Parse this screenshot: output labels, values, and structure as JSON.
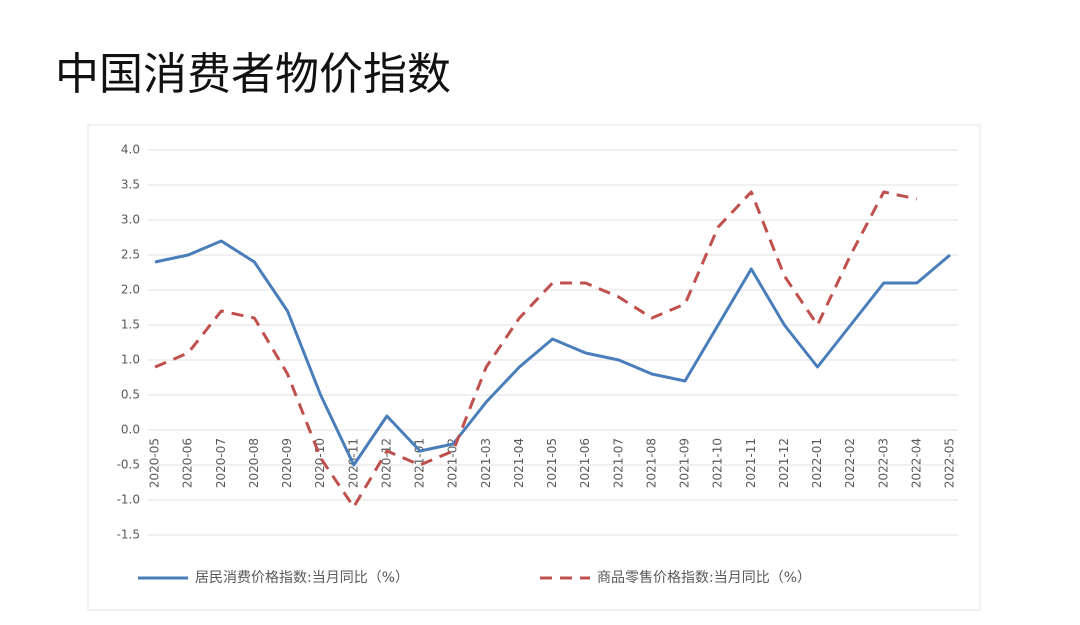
{
  "title": "中国消费者物价指数",
  "chart_data": {
    "type": "line",
    "categories": [
      "2020-05",
      "2020-06",
      "2020-07",
      "2020-08",
      "2020-09",
      "2020-10",
      "2020-11",
      "2020-12",
      "2021-01",
      "2021-02",
      "2021-03",
      "2021-04",
      "2021-05",
      "2021-06",
      "2021-07",
      "2021-08",
      "2021-09",
      "2021-10",
      "2021-11",
      "2021-12",
      "2022-01",
      "2022-02",
      "2022-03",
      "2022-04",
      "2022-05"
    ],
    "series": [
      {
        "name": "居民消费价格指数:当月同比（%）",
        "color": "#4a7ebb",
        "dash": false,
        "values": [
          2.4,
          2.5,
          2.7,
          2.4,
          1.7,
          0.5,
          -0.5,
          0.2,
          -0.3,
          -0.2,
          0.4,
          0.9,
          1.3,
          1.1,
          1.0,
          0.8,
          0.7,
          1.5,
          2.3,
          1.5,
          0.9,
          1.5,
          2.1,
          2.1,
          2.5
        ]
      },
      {
        "name": "商品零售价格指数:当月同比（%）",
        "color": "#c0504d",
        "dash": true,
        "values": [
          0.9,
          1.1,
          1.7,
          1.6,
          0.8,
          -0.4,
          -1.1,
          -0.3,
          -0.5,
          -0.3,
          0.9,
          1.6,
          2.1,
          2.1,
          1.9,
          1.6,
          1.8,
          2.9,
          3.4,
          2.2,
          1.5,
          2.5,
          3.4,
          3.3,
          null
        ]
      }
    ],
    "ylim": [
      -1.5,
      4.0
    ],
    "yticks": [
      {
        "value": -1.5,
        "label": "-1.5"
      },
      {
        "value": -1.0,
        "label": "-1.0"
      },
      {
        "value": -0.5,
        "label": "-0.5"
      },
      {
        "value": 0,
        "label": "0.0"
      },
      {
        "value": 0.5,
        "label": "0.5"
      },
      {
        "value": 1.0,
        "label": "1.0"
      },
      {
        "value": 1.5,
        "label": "1.5"
      },
      {
        "value": 2.0,
        "label": "2.0"
      },
      {
        "value": 2.5,
        "label": "2.5"
      },
      {
        "value": 3.0,
        "label": "3.0"
      },
      {
        "value": 3.5,
        "label": "3.5"
      },
      {
        "value": 4.0,
        "label": "4.0"
      }
    ],
    "grid": true,
    "legend": "bottom"
  }
}
